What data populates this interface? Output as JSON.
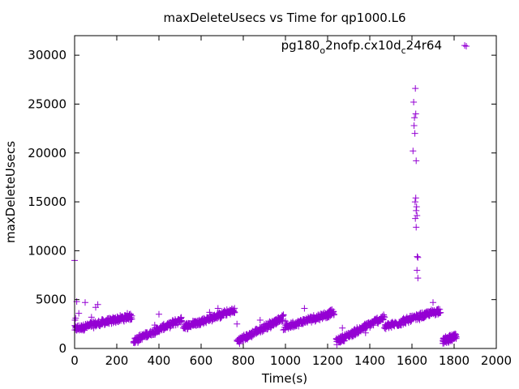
{
  "chart_data": {
    "type": "scatter",
    "title": "maxDeleteUsecs vs Time for qp1000.L6",
    "xlabel": "Time(s)",
    "ylabel": "maxDeleteUsecs",
    "xlim": [
      0,
      2000
    ],
    "ylim": [
      0,
      32000
    ],
    "xticks": [
      0,
      200,
      400,
      600,
      800,
      1000,
      1200,
      1400,
      1600,
      1800,
      2000
    ],
    "yticks": [
      0,
      5000,
      10000,
      15000,
      20000,
      25000,
      30000
    ],
    "grid": false,
    "legend_position": "top-right",
    "marker": "plus",
    "color": "#9400d3",
    "series": [
      {
        "name": "pg180_o2nofp.cx10d_c24r64",
        "name_parts": [
          "pg180",
          "o",
          "2nofp.cx10d",
          "c",
          "24r64"
        ],
        "segments": [
          {
            "x_start": 0,
            "x_end": 270,
            "y_start": 2000,
            "y_end": 3300,
            "step": 3
          },
          {
            "x_start": 280,
            "x_end": 510,
            "y_start": 800,
            "y_end": 3000,
            "step": 3
          },
          {
            "x_start": 515,
            "x_end": 760,
            "y_start": 2200,
            "y_end": 3900,
            "step": 3
          },
          {
            "x_start": 770,
            "x_end": 990,
            "y_start": 700,
            "y_end": 3200,
            "step": 3
          },
          {
            "x_start": 995,
            "x_end": 1230,
            "y_start": 2200,
            "y_end": 3700,
            "step": 3
          },
          {
            "x_start": 1240,
            "x_end": 1465,
            "y_start": 700,
            "y_end": 3200,
            "step": 3
          },
          {
            "x_start": 1470,
            "x_end": 1735,
            "y_start": 2200,
            "y_end": 3900,
            "step": 3
          },
          {
            "x_start": 1745,
            "x_end": 1810,
            "y_start": 800,
            "y_end": 1200,
            "step": 2
          }
        ],
        "points": [
          [
            0,
            9000
          ],
          [
            2,
            2900
          ],
          [
            5,
            3100
          ],
          [
            10,
            4800
          ],
          [
            15,
            2000
          ],
          [
            20,
            3600
          ],
          [
            50,
            4700
          ],
          [
            60,
            2500
          ],
          [
            80,
            3200
          ],
          [
            100,
            4200
          ],
          [
            110,
            4500
          ],
          [
            150,
            2900
          ],
          [
            250,
            3600
          ],
          [
            300,
            600
          ],
          [
            380,
            2400
          ],
          [
            400,
            3500
          ],
          [
            560,
            2600
          ],
          [
            640,
            3700
          ],
          [
            680,
            4100
          ],
          [
            740,
            3900
          ],
          [
            770,
            2500
          ],
          [
            780,
            1000
          ],
          [
            830,
            1500
          ],
          [
            880,
            2900
          ],
          [
            930,
            2100
          ],
          [
            990,
            1900
          ],
          [
            1000,
            2800
          ],
          [
            1090,
            4100
          ],
          [
            1150,
            3000
          ],
          [
            1260,
            1200
          ],
          [
            1270,
            2100
          ],
          [
            1380,
            1600
          ],
          [
            1470,
            3200
          ],
          [
            1510,
            2400
          ],
          [
            1560,
            3100
          ],
          [
            1605,
            20200
          ],
          [
            1608,
            25200
          ],
          [
            1610,
            22800
          ],
          [
            1612,
            23600
          ],
          [
            1614,
            22000
          ],
          [
            1616,
            26600
          ],
          [
            1618,
            24000
          ],
          [
            1620,
            19200
          ],
          [
            1615,
            15000
          ],
          [
            1618,
            15400
          ],
          [
            1620,
            14100
          ],
          [
            1622,
            14500
          ],
          [
            1624,
            13600
          ],
          [
            1616,
            13300
          ],
          [
            1620,
            12400
          ],
          [
            1625,
            9400
          ],
          [
            1628,
            9300
          ],
          [
            1624,
            8000
          ],
          [
            1628,
            7200
          ],
          [
            1630,
            3300
          ],
          [
            1700,
            4700
          ],
          [
            1760,
            700
          ],
          [
            1850,
            31000
          ]
        ]
      }
    ]
  }
}
